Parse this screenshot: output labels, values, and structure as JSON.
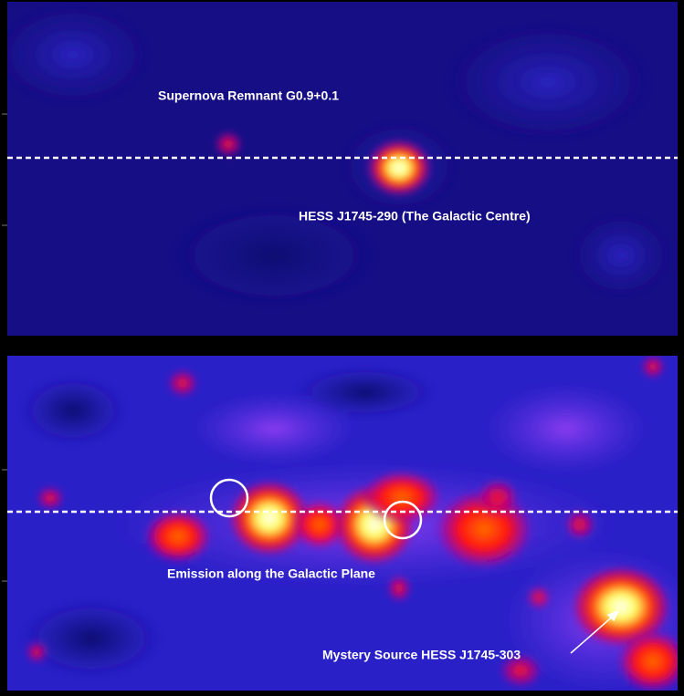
{
  "panels": [
    {
      "labels": [
        "Supernova Remnant G0.9+0.1",
        "HESS J1745-290 (The Galactic Centre)"
      ]
    },
    {
      "labels": [
        "Emission along the Galactic Plane",
        "Mystery Source HESS J1745-303"
      ]
    }
  ]
}
